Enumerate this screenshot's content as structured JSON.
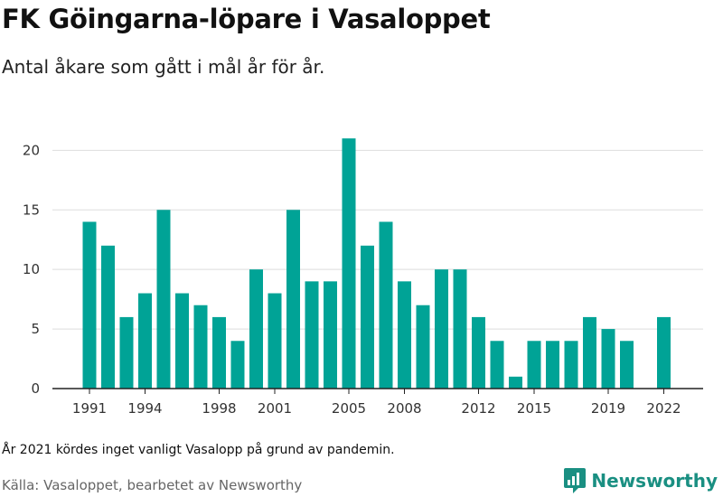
{
  "chart_data": {
    "type": "bar",
    "title": "FK Göingarna-löpare i Vasaloppet",
    "subtitle": "Antal åkare som gått i mål år för år.",
    "categories": [
      "1991",
      "1992",
      "1993",
      "1994",
      "1995",
      "1996",
      "1997",
      "1998",
      "1999",
      "2000",
      "2001",
      "2002",
      "2003",
      "2004",
      "2005",
      "2006",
      "2007",
      "2008",
      "2009",
      "2010",
      "2011",
      "2012",
      "2013",
      "2014",
      "2015",
      "2016",
      "2017",
      "2018",
      "2019",
      "2020",
      "2021",
      "2022"
    ],
    "values": [
      14,
      12,
      6,
      8,
      15,
      8,
      7,
      6,
      4,
      10,
      8,
      15,
      9,
      9,
      21,
      12,
      14,
      9,
      7,
      10,
      10,
      6,
      4,
      1,
      4,
      4,
      4,
      6,
      5,
      4,
      null,
      6
    ],
    "x_tick_labels": [
      "1991",
      "1994",
      "1998",
      "2001",
      "2005",
      "2008",
      "2012",
      "2015",
      "2019",
      "2022"
    ],
    "y_ticks": [
      0,
      5,
      10,
      15,
      20
    ],
    "ylim": [
      0,
      22
    ],
    "xlabel": "",
    "ylabel": "",
    "grid": true,
    "bar_color": "#00a396"
  },
  "note": "År 2021 kördes inget vanligt Vasalopp på grund av pandemin.",
  "source": "Källa: Vasaloppet, bearbetet av Newsworthy",
  "brand": {
    "name": "Newsworthy",
    "color": "#1a8f82",
    "icon": "newsworthy-logo-icon"
  }
}
